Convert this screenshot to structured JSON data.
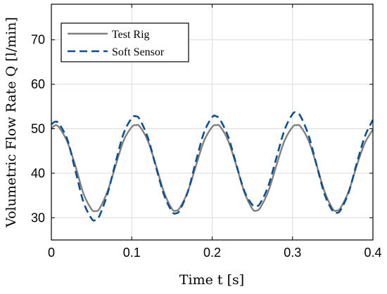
{
  "chart_data": {
    "type": "line",
    "title": "",
    "xlabel": "Time t [s]",
    "ylabel": "Volumetric Flow Rate Q [l/min]",
    "xlim": [
      0,
      0.4
    ],
    "ylim": [
      25,
      78
    ],
    "xticks": [
      0,
      0.1,
      0.2,
      0.3,
      0.4
    ],
    "xtick_labels": [
      "0",
      "0.1",
      "0.2",
      "0.3",
      "0.4"
    ],
    "yticks": [
      30,
      40,
      50,
      60,
      70
    ],
    "ytick_labels": [
      "30",
      "40",
      "50",
      "60",
      "70"
    ],
    "grid": true,
    "legend_position": "top-left",
    "series": [
      {
        "name": "Test Rig",
        "color": "#808080",
        "style": "solid",
        "x": [
          0,
          0.005,
          0.01,
          0.02,
          0.03,
          0.04,
          0.05,
          0.055,
          0.06,
          0.07,
          0.08,
          0.09,
          0.1,
          0.105,
          0.11,
          0.12,
          0.13,
          0.14,
          0.15,
          0.155,
          0.16,
          0.17,
          0.18,
          0.19,
          0.2,
          0.205,
          0.21,
          0.22,
          0.23,
          0.24,
          0.25,
          0.255,
          0.26,
          0.27,
          0.28,
          0.29,
          0.3,
          0.305,
          0.31,
          0.32,
          0.33,
          0.34,
          0.35,
          0.355,
          0.36,
          0.37,
          0.38,
          0.39,
          0.4
        ],
        "y": [
          50.0,
          50.8,
          50.2,
          47.0,
          41.6,
          35.4,
          31.9,
          31.5,
          32.1,
          36.0,
          41.8,
          47.4,
          50.4,
          50.8,
          50.5,
          47.3,
          41.8,
          35.8,
          32.0,
          31.6,
          32.3,
          36.0,
          41.8,
          47.3,
          50.4,
          50.8,
          50.5,
          47.3,
          41.8,
          35.8,
          32.0,
          31.6,
          32.3,
          36.0,
          41.8,
          47.3,
          50.4,
          50.8,
          50.5,
          47.3,
          41.8,
          35.8,
          32.0,
          31.6,
          32.3,
          36.0,
          41.8,
          46.8,
          49.8
        ]
      },
      {
        "name": "Soft Sensor",
        "color": "#0b4f8f",
        "style": "dashed",
        "x": [
          0,
          0.005,
          0.01,
          0.02,
          0.03,
          0.04,
          0.05,
          0.055,
          0.06,
          0.07,
          0.08,
          0.09,
          0.1,
          0.105,
          0.11,
          0.12,
          0.13,
          0.14,
          0.15,
          0.155,
          0.16,
          0.17,
          0.18,
          0.19,
          0.2,
          0.205,
          0.21,
          0.22,
          0.23,
          0.24,
          0.25,
          0.255,
          0.26,
          0.27,
          0.28,
          0.29,
          0.3,
          0.305,
          0.31,
          0.32,
          0.33,
          0.34,
          0.35,
          0.355,
          0.36,
          0.37,
          0.38,
          0.39,
          0.4
        ],
        "y": [
          51.0,
          51.6,
          51.0,
          47.5,
          40.5,
          33.5,
          29.8,
          29.5,
          30.5,
          35.5,
          42.5,
          49.0,
          52.4,
          52.8,
          52.1,
          48.0,
          41.5,
          35.2,
          31.4,
          31.0,
          31.8,
          36.0,
          42.8,
          49.2,
          52.6,
          52.8,
          52.0,
          48.2,
          42.0,
          36.0,
          32.9,
          32.6,
          33.3,
          37.2,
          43.5,
          49.7,
          53.3,
          53.6,
          52.8,
          48.5,
          41.8,
          35.2,
          31.5,
          31.1,
          31.8,
          35.8,
          42.3,
          48.3,
          52.0
        ]
      }
    ]
  }
}
